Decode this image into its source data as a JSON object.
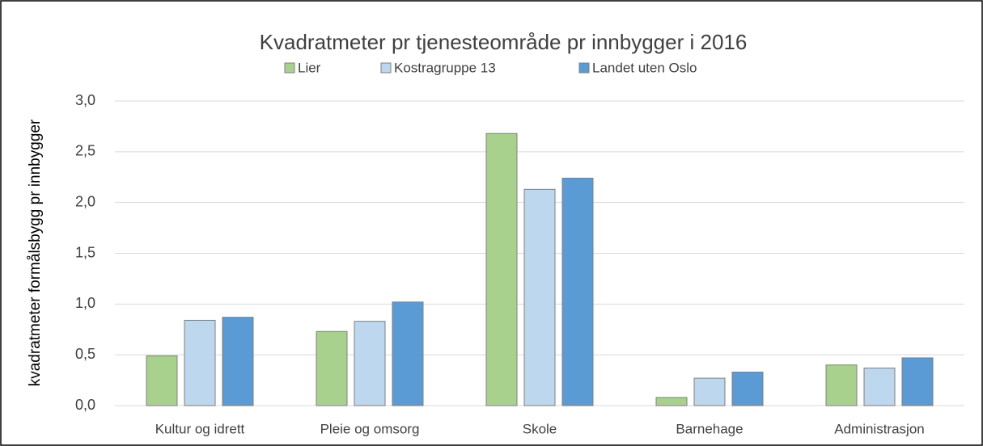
{
  "chart_data": {
    "type": "bar",
    "title": "Kvadratmeter pr tjenesteområde pr innbygger i 2016",
    "y_label": "kvadratmeter formålsbygg pr innbygger",
    "categories": [
      "Kultur og idrett",
      "Pleie og omsorg",
      "Skole",
      "Barnehage",
      "Administrasjon"
    ],
    "series": [
      {
        "name": "Lier",
        "color": "#a9d18e",
        "values": [
          0.49,
          0.73,
          2.68,
          0.08,
          0.4
        ]
      },
      {
        "name": "Kostragruppe 13",
        "color": "#bdd7ee",
        "values": [
          0.84,
          0.83,
          2.13,
          0.27,
          0.37
        ]
      },
      {
        "name": "Landet uten Oslo",
        "color": "#5b9bd5",
        "values": [
          0.87,
          1.02,
          2.24,
          0.33,
          0.47
        ]
      }
    ],
    "ylim": [
      0,
      3
    ],
    "yticks": [
      {
        "value": 0,
        "label": "0,0"
      },
      {
        "value": 0.5,
        "label": "0,5"
      },
      {
        "value": 1,
        "label": "1,0"
      },
      {
        "value": 1.5,
        "label": "1,5"
      },
      {
        "value": 2,
        "label": "2,0"
      },
      {
        "value": 2.5,
        "label": "2,5"
      },
      {
        "value": 3,
        "label": "3,0"
      }
    ],
    "grid": true,
    "legend": "top"
  }
}
